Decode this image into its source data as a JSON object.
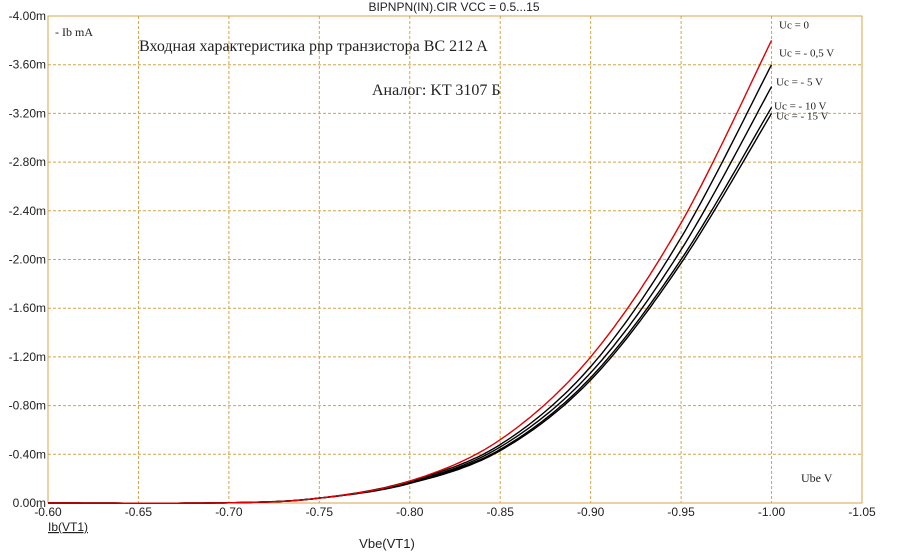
{
  "chart_data": {
    "type": "line",
    "title": "BIPNPN(IN).CIR VCC = 0.5...15",
    "xlabel": "Vbe(VT1)",
    "ylabel": "Ib(VT1)",
    "x_unit_label": "Ube V",
    "y_unit_label": "- Ib mA",
    "xlim": [
      -0.6,
      -1.05
    ],
    "ylim": [
      0.0,
      -4.0
    ],
    "x_ticks": [
      "-0.60",
      "-0.65",
      "-0.70",
      "-0.75",
      "-0.80",
      "-0.85",
      "-0.90",
      "-0.95",
      "-1.00",
      "-1.05"
    ],
    "y_ticks": [
      "0.00m",
      "-0.40m",
      "-0.80m",
      "-1.20m",
      "-1.60m",
      "-2.00m",
      "-2.40m",
      "-2.80m",
      "-3.20m",
      "-3.60m",
      "-4.00m"
    ],
    "grid": true,
    "annotations": {
      "heading": "Входная характеристика pnp транзистора BC 212 A",
      "analog": "Аналог: KT 3107 Б"
    },
    "series": [
      {
        "name": "Uc = 0",
        "color": "#e00000",
        "x": [
          -0.6,
          -0.7,
          -0.75,
          -0.8,
          -0.85,
          -0.9,
          -0.95,
          -1.0
        ],
        "y": [
          0.0,
          -0.002,
          -0.04,
          -0.18,
          -0.52,
          -1.2,
          -2.3,
          -3.8
        ]
      },
      {
        "name": "Uc = - 0,5 V",
        "color": "#000000",
        "x": [
          -0.6,
          -0.7,
          -0.75,
          -0.8,
          -0.85,
          -0.9,
          -0.95,
          -1.0
        ],
        "y": [
          0.0,
          -0.002,
          -0.04,
          -0.18,
          -0.48,
          -1.12,
          -2.18,
          -3.6
        ]
      },
      {
        "name": "Uc = - 5 V",
        "color": "#000000",
        "x": [
          -0.6,
          -0.7,
          -0.75,
          -0.8,
          -0.85,
          -0.9,
          -0.95,
          -1.0
        ],
        "y": [
          0.0,
          -0.002,
          -0.04,
          -0.17,
          -0.46,
          -1.07,
          -2.08,
          -3.42
        ]
      },
      {
        "name": "Uc = - 10 V",
        "color": "#000000",
        "x": [
          -0.6,
          -0.7,
          -0.75,
          -0.8,
          -0.85,
          -0.9,
          -0.95,
          -1.0
        ],
        "y": [
          0.0,
          -0.002,
          -0.04,
          -0.17,
          -0.44,
          -1.03,
          -2.0,
          -3.25
        ]
      },
      {
        "name": "Uc = - 15 V",
        "color": "#000000",
        "x": [
          -0.6,
          -0.7,
          -0.75,
          -0.8,
          -0.85,
          -0.9,
          -0.95,
          -1.0
        ],
        "y": [
          0.0,
          -0.002,
          -0.04,
          -0.16,
          -0.43,
          -1.01,
          -1.97,
          -3.2
        ]
      }
    ]
  },
  "colors": {
    "frame": "#d4a54a",
    "grid": "#d4a54a",
    "text": "#222222"
  }
}
